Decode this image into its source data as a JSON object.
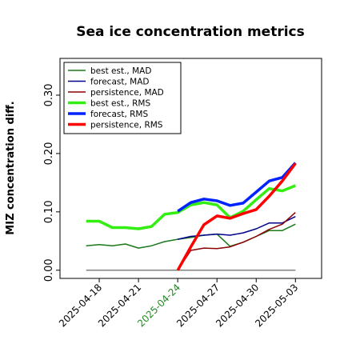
{
  "chart_data": {
    "type": "line",
    "title": "Sea ice concentration metrics",
    "ylabel": "MIZ concentration diff.",
    "x": [
      "2025-04-17",
      "2025-04-18",
      "2025-04-19",
      "2025-04-20",
      "2025-04-21",
      "2025-04-22",
      "2025-04-23",
      "2025-04-24",
      "2025-04-25",
      "2025-04-26",
      "2025-04-27",
      "2025-04-28",
      "2025-04-29",
      "2025-04-30",
      "2025-05-01",
      "2025-05-02",
      "2025-05-03"
    ],
    "xlim": [
      "2025-04-15",
      "2025-05-05"
    ],
    "xticks": [
      "2025-04-18",
      "2025-04-21",
      "2025-04-24",
      "2025-04-27",
      "2025-04-30",
      "2025-05-03"
    ],
    "highlight_xtick": "2025-04-24",
    "highlight_color": "#228b22",
    "ylim": [
      -0.014,
      0.363
    ],
    "yticks": [
      {
        "value": 0,
        "label": "0.00"
      },
      {
        "value": 0.1,
        "label": "0.10"
      },
      {
        "value": 0.2,
        "label": "0.20"
      },
      {
        "value": 0.3,
        "label": "0.30"
      }
    ],
    "reference_line": {
      "value": 0,
      "color": "#808080"
    },
    "legend": "upper left",
    "series": [
      {
        "name": "best est., MAD",
        "color": "#1a7a1a",
        "linewidth": 1.5,
        "values": [
          0.042,
          0.044,
          0.042,
          0.045,
          0.038,
          0.042,
          0.049,
          0.053,
          0.056,
          0.06,
          0.062,
          0.041,
          0.048,
          0.058,
          0.068,
          0.068,
          0.079
        ]
      },
      {
        "name": "forecast,  MAD",
        "color": "#00008b",
        "linewidth": 1.5,
        "values": [
          null,
          null,
          null,
          null,
          null,
          null,
          null,
          0.053,
          0.058,
          0.06,
          0.062,
          0.06,
          0.064,
          0.071,
          0.081,
          0.081,
          0.092
        ]
      },
      {
        "name": "persistence, MAD",
        "color": "#8b0000",
        "linewidth": 1.5,
        "values": [
          null,
          null,
          null,
          null,
          null,
          null,
          null,
          0,
          0.034,
          0.038,
          0.037,
          0.04,
          0.048,
          0.058,
          0.07,
          0.079,
          0.099
        ]
      },
      {
        "name": "best est., RMS",
        "color": "#33ee11",
        "linewidth": 3.5,
        "values": [
          0.084,
          0.084,
          0.073,
          0.073,
          0.071,
          0.075,
          0.096,
          0.099,
          0.112,
          0.116,
          0.112,
          0.09,
          0.101,
          0.121,
          0.14,
          0.136,
          0.145
        ]
      },
      {
        "name": "forecast,  RMS",
        "color": "#0022ff",
        "linewidth": 3.5,
        "values": [
          null,
          null,
          null,
          null,
          null,
          null,
          null,
          0.101,
          0.116,
          0.122,
          0.119,
          0.111,
          0.115,
          0.134,
          0.153,
          0.159,
          0.184
        ]
      },
      {
        "name": "persistence, RMS",
        "color": "#ff0000",
        "linewidth": 3.5,
        "values": [
          null,
          null,
          null,
          null,
          null,
          null,
          null,
          0,
          0.04,
          0.078,
          0.093,
          0.089,
          0.097,
          0.104,
          0.127,
          0.153,
          0.183
        ]
      }
    ]
  }
}
